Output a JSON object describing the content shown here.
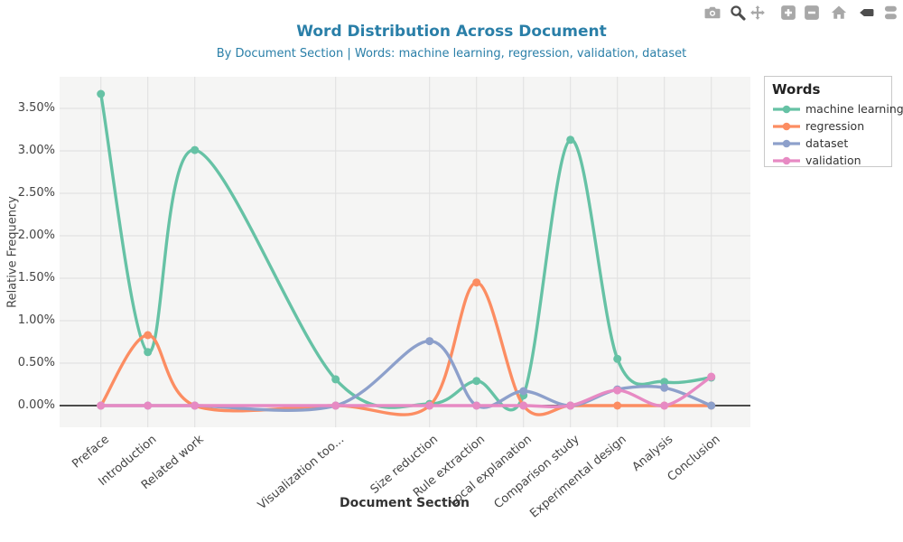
{
  "header": {
    "title": "Word Distribution Across Document",
    "subtitle": "By Document Section | Words: machine learning, regression, validation, dataset",
    "title_color": "#2a7fa8"
  },
  "modebar": {
    "icons": [
      {
        "name": "camera-icon",
        "active": false
      },
      {
        "name": "zoom-icon",
        "active": true
      },
      {
        "name": "pan-icon",
        "active": false
      },
      {
        "name": "zoom-in-icon",
        "active": false
      },
      {
        "name": "zoom-out-icon",
        "active": false
      },
      {
        "name": "home-icon",
        "active": false
      },
      {
        "name": "hover-closest-icon",
        "active": true
      },
      {
        "name": "hover-compare-icon",
        "active": false
      }
    ]
  },
  "legend": {
    "title": "Words",
    "items": [
      {
        "label": "machine learning",
        "color": "#66c2a5"
      },
      {
        "label": "regression",
        "color": "#fc8d62"
      },
      {
        "label": "dataset",
        "color": "#8da0cb"
      },
      {
        "label": "validation",
        "color": "#e78ac3"
      }
    ]
  },
  "chart_data": {
    "type": "line",
    "title": "Word Distribution Across Document",
    "subtitle": "By Document Section | Words: machine learning, regression, validation, dataset",
    "xlabel": "Document Section",
    "ylabel": "Relative Frequency",
    "categories": [
      "Preface",
      "Introduction",
      "Related work",
      "Visualization too...",
      "Size reduction",
      "Rule extraction",
      "Local explanation",
      "Comparison study",
      "Experimental design",
      "Analysis",
      "Conclusion"
    ],
    "x_positions": [
      0,
      1,
      2,
      5,
      7,
      8,
      9,
      10,
      11,
      12,
      13
    ],
    "series": [
      {
        "name": "machine learning",
        "color": "#66c2a5",
        "values": [
          3.67,
          0.63,
          3.01,
          0.31,
          0.02,
          0.29,
          0.12,
          3.13,
          0.55,
          0.28,
          0.33
        ]
      },
      {
        "name": "regression",
        "color": "#fc8d62",
        "values": [
          0,
          0.83,
          0,
          0,
          0,
          1.45,
          0,
          0,
          0,
          0,
          0
        ]
      },
      {
        "name": "dataset",
        "color": "#8da0cb",
        "values": [
          0,
          0,
          0,
          0,
          0.76,
          0,
          0.17,
          0,
          0.19,
          0.21,
          0
        ]
      },
      {
        "name": "validation",
        "color": "#e78ac3",
        "values": [
          0,
          0,
          0,
          0,
          0,
          0,
          0,
          0,
          0.18,
          0,
          0.34
        ]
      }
    ],
    "ytick_values": [
      0,
      0.5,
      1,
      1.5,
      2,
      2.5,
      3,
      3.5
    ],
    "ytick_labels": [
      "0.00%",
      "0.50%",
      "1.00%",
      "1.50%",
      "2.00%",
      "2.50%",
      "3.00%",
      "3.50%"
    ],
    "ylim": [
      -0.26,
      3.87
    ],
    "y_unit": "percent",
    "grid": true,
    "legend_position": "outside-top-right"
  }
}
